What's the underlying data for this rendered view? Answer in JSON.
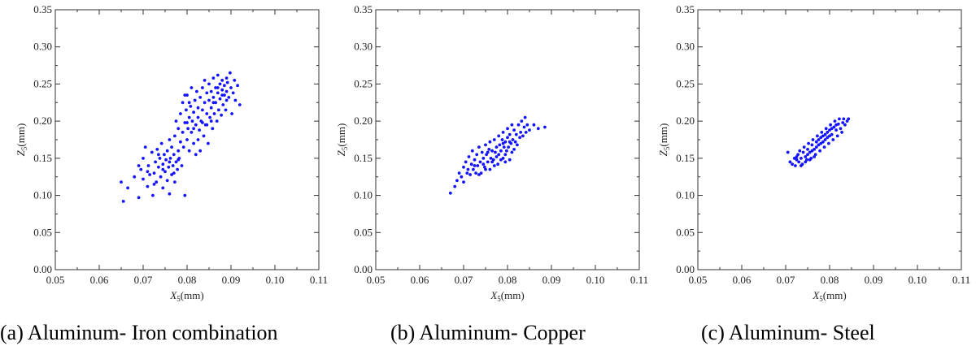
{
  "chart_data": [
    {
      "type": "scatter",
      "caption": "(a) Aluminum- Iron combination",
      "xlabel_main": "X",
      "xlabel_sub": "5",
      "xlabel_unit": "(mm)",
      "ylabel_main": "Z",
      "ylabel_sub": "5",
      "ylabel_unit": "(mm)",
      "xlim": [
        0.05,
        0.11
      ],
      "ylim": [
        0.0,
        0.35
      ],
      "xticks": [
        "0.05",
        "0.06",
        "0.07",
        "0.08",
        "0.09",
        "0.10",
        "0.11"
      ],
      "yticks": [
        "0.00",
        "0.05",
        "0.10",
        "0.15",
        "0.20",
        "0.25",
        "0.30",
        "0.35"
      ],
      "color": "#1414ff",
      "points": [
        [
          0.0655,
          0.092
        ],
        [
          0.065,
          0.118
        ],
        [
          0.0665,
          0.11
        ],
        [
          0.068,
          0.125
        ],
        [
          0.069,
          0.097
        ],
        [
          0.0695,
          0.135
        ],
        [
          0.07,
          0.122
        ],
        [
          0.07,
          0.15
        ],
        [
          0.0705,
          0.165
        ],
        [
          0.071,
          0.112
        ],
        [
          0.0712,
          0.14
        ],
        [
          0.0715,
          0.128
        ],
        [
          0.072,
          0.158
        ],
        [
          0.0722,
          0.1
        ],
        [
          0.0725,
          0.13
        ],
        [
          0.0728,
          0.145
        ],
        [
          0.073,
          0.118
        ],
        [
          0.0732,
          0.162
        ],
        [
          0.0735,
          0.138
        ],
        [
          0.0738,
          0.15
        ],
        [
          0.074,
          0.125
        ],
        [
          0.0742,
          0.17
        ],
        [
          0.0745,
          0.11
        ],
        [
          0.0745,
          0.142
        ],
        [
          0.0748,
          0.155
        ],
        [
          0.075,
          0.132
        ],
        [
          0.0752,
          0.148
        ],
        [
          0.0755,
          0.12
        ],
        [
          0.0755,
          0.16
        ],
        [
          0.0758,
          0.138
        ],
        [
          0.076,
          0.175
        ],
        [
          0.076,
          0.102
        ],
        [
          0.0762,
          0.15
        ],
        [
          0.0765,
          0.128
        ],
        [
          0.0765,
          0.165
        ],
        [
          0.0768,
          0.14
        ],
        [
          0.077,
          0.155
        ],
        [
          0.0772,
          0.118
        ],
        [
          0.0772,
          0.18
        ],
        [
          0.0775,
          0.145
        ],
        [
          0.0775,
          0.2
        ],
        [
          0.0778,
          0.135
        ],
        [
          0.078,
          0.16
        ],
        [
          0.078,
          0.19
        ],
        [
          0.0782,
          0.15
        ],
        [
          0.0785,
          0.172
        ],
        [
          0.0785,
          0.21
        ],
        [
          0.0788,
          0.14
        ],
        [
          0.079,
          0.185
        ],
        [
          0.079,
          0.225
        ],
        [
          0.0792,
          0.165
        ],
        [
          0.0795,
          0.198
        ],
        [
          0.0795,
          0.1
        ],
        [
          0.0798,
          0.215
        ],
        [
          0.08,
          0.175
        ],
        [
          0.08,
          0.235
        ],
        [
          0.0802,
          0.19
        ],
        [
          0.0805,
          0.205
        ],
        [
          0.0805,
          0.16
        ],
        [
          0.0808,
          0.22
        ],
        [
          0.081,
          0.185
        ],
        [
          0.081,
          0.245
        ],
        [
          0.0812,
          0.2
        ],
        [
          0.0815,
          0.212
        ],
        [
          0.0815,
          0.17
        ],
        [
          0.0818,
          0.228
        ],
        [
          0.082,
          0.195
        ],
        [
          0.082,
          0.155
        ],
        [
          0.0822,
          0.24
        ],
        [
          0.0825,
          0.205
        ],
        [
          0.0825,
          0.218
        ],
        [
          0.0828,
          0.188
        ],
        [
          0.083,
          0.232
        ],
        [
          0.083,
          0.16
        ],
        [
          0.0832,
          0.2
        ],
        [
          0.0835,
          0.245
        ],
        [
          0.0835,
          0.215
        ],
        [
          0.0838,
          0.18
        ],
        [
          0.084,
          0.225
        ],
        [
          0.084,
          0.255
        ],
        [
          0.0842,
          0.195
        ],
        [
          0.0845,
          0.21
        ],
        [
          0.0845,
          0.238
        ],
        [
          0.0848,
          0.17
        ],
        [
          0.085,
          0.228
        ],
        [
          0.085,
          0.25
        ],
        [
          0.0852,
          0.205
        ],
        [
          0.0855,
          0.24
        ],
        [
          0.0855,
          0.218
        ],
        [
          0.0858,
          0.19
        ],
        [
          0.086,
          0.232
        ],
        [
          0.086,
          0.258
        ],
        [
          0.0862,
          0.21
        ],
        [
          0.0865,
          0.245
        ],
        [
          0.0865,
          0.225
        ],
        [
          0.0868,
          0.2
        ],
        [
          0.087,
          0.238
        ],
        [
          0.087,
          0.262
        ],
        [
          0.0872,
          0.215
        ],
        [
          0.0875,
          0.25
        ],
        [
          0.0875,
          0.23
        ],
        [
          0.0878,
          0.208
        ],
        [
          0.088,
          0.242
        ],
        [
          0.088,
          0.255
        ],
        [
          0.0882,
          0.222
        ],
        [
          0.0885,
          0.235
        ],
        [
          0.0885,
          0.248
        ],
        [
          0.0888,
          0.215
        ],
        [
          0.089,
          0.24
        ],
        [
          0.089,
          0.228
        ],
        [
          0.0892,
          0.252
        ],
        [
          0.0895,
          0.232
        ],
        [
          0.0898,
          0.265
        ],
        [
          0.09,
          0.245
        ],
        [
          0.0902,
          0.21
        ],
        [
          0.0905,
          0.238
        ],
        [
          0.0908,
          0.255
        ],
        [
          0.091,
          0.228
        ],
        [
          0.0915,
          0.248
        ],
        [
          0.092,
          0.222
        ],
        [
          0.076,
          0.145
        ],
        [
          0.0745,
          0.135
        ],
        [
          0.0735,
          0.155
        ],
        [
          0.077,
          0.13
        ],
        [
          0.078,
          0.148
        ],
        [
          0.0725,
          0.115
        ],
        [
          0.071,
          0.132
        ],
        [
          0.069,
          0.14
        ],
        [
          0.08,
          0.198
        ],
        [
          0.0815,
          0.19
        ],
        [
          0.0825,
          0.175
        ],
        [
          0.0835,
          0.198
        ],
        [
          0.0805,
          0.225
        ],
        [
          0.0795,
          0.235
        ],
        [
          0.0845,
          0.195
        ],
        [
          0.086,
          0.225
        ],
        [
          0.087,
          0.245
        ],
        [
          0.088,
          0.235
        ],
        [
          0.089,
          0.258
        ],
        [
          0.0855,
          0.2
        ]
      ]
    },
    {
      "type": "scatter",
      "caption": "(b) Aluminum- Copper",
      "xlabel_main": "X",
      "xlabel_sub": "5",
      "xlabel_unit": "(mm)",
      "ylabel_main": "Z",
      "ylabel_sub": "5",
      "ylabel_unit": "(mm)",
      "xlim": [
        0.05,
        0.11
      ],
      "ylim": [
        0.0,
        0.35
      ],
      "xticks": [
        "0.05",
        "0.06",
        "0.07",
        "0.08",
        "0.09",
        "0.10",
        "0.11"
      ],
      "yticks": [
        "0.00",
        "0.05",
        "0.10",
        "0.15",
        "0.20",
        "0.25",
        "0.30",
        "0.35"
      ],
      "color": "#1414ff",
      "points": [
        [
          0.067,
          0.103
        ],
        [
          0.068,
          0.112
        ],
        [
          0.0685,
          0.12
        ],
        [
          0.069,
          0.13
        ],
        [
          0.0695,
          0.125
        ],
        [
          0.07,
          0.138
        ],
        [
          0.07,
          0.118
        ],
        [
          0.0705,
          0.145
        ],
        [
          0.0708,
          0.13
        ],
        [
          0.071,
          0.135
        ],
        [
          0.0712,
          0.152
        ],
        [
          0.0715,
          0.128
        ],
        [
          0.0718,
          0.142
        ],
        [
          0.072,
          0.16
        ],
        [
          0.0722,
          0.135
        ],
        [
          0.0725,
          0.148
        ],
        [
          0.0728,
          0.13
        ],
        [
          0.073,
          0.155
        ],
        [
          0.0732,
          0.14
        ],
        [
          0.0735,
          0.165
        ],
        [
          0.0738,
          0.145
        ],
        [
          0.074,
          0.13
        ],
        [
          0.0742,
          0.158
        ],
        [
          0.0745,
          0.15
        ],
        [
          0.0748,
          0.138
        ],
        [
          0.075,
          0.168
        ],
        [
          0.0752,
          0.155
        ],
        [
          0.0755,
          0.145
        ],
        [
          0.0758,
          0.162
        ],
        [
          0.076,
          0.172
        ],
        [
          0.076,
          0.135
        ],
        [
          0.0762,
          0.15
        ],
        [
          0.0765,
          0.16
        ],
        [
          0.0768,
          0.148
        ],
        [
          0.077,
          0.175
        ],
        [
          0.0772,
          0.158
        ],
        [
          0.0775,
          0.165
        ],
        [
          0.0778,
          0.142
        ],
        [
          0.078,
          0.18
        ],
        [
          0.078,
          0.155
        ],
        [
          0.0782,
          0.168
        ],
        [
          0.0785,
          0.16
        ],
        [
          0.0788,
          0.175
        ],
        [
          0.079,
          0.15
        ],
        [
          0.079,
          0.185
        ],
        [
          0.0792,
          0.165
        ],
        [
          0.0795,
          0.172
        ],
        [
          0.0798,
          0.16
        ],
        [
          0.08,
          0.19
        ],
        [
          0.08,
          0.178
        ],
        [
          0.0802,
          0.165
        ],
        [
          0.0805,
          0.182
        ],
        [
          0.0808,
          0.17
        ],
        [
          0.081,
          0.195
        ],
        [
          0.081,
          0.158
        ],
        [
          0.0812,
          0.175
        ],
        [
          0.0815,
          0.188
        ],
        [
          0.0818,
          0.172
        ],
        [
          0.082,
          0.182
        ],
        [
          0.0822,
          0.168
        ],
        [
          0.0825,
          0.195
        ],
        [
          0.0828,
          0.178
        ],
        [
          0.083,
          0.185
        ],
        [
          0.0832,
          0.2
        ],
        [
          0.0835,
          0.18
        ],
        [
          0.0838,
          0.192
        ],
        [
          0.084,
          0.205
        ],
        [
          0.0842,
          0.185
        ],
        [
          0.0845,
          0.195
        ],
        [
          0.085,
          0.188
        ],
        [
          0.086,
          0.195
        ],
        [
          0.087,
          0.19
        ],
        [
          0.0885,
          0.192
        ],
        [
          0.0725,
          0.14
        ],
        [
          0.0735,
          0.128
        ],
        [
          0.0745,
          0.142
        ],
        [
          0.0755,
          0.158
        ],
        [
          0.0765,
          0.145
        ],
        [
          0.0775,
          0.152
        ],
        [
          0.0785,
          0.148
        ],
        [
          0.0795,
          0.155
        ],
        [
          0.0805,
          0.148
        ],
        [
          0.0815,
          0.162
        ],
        [
          0.077,
          0.14
        ],
        [
          0.075,
          0.135
        ],
        [
          0.0795,
          0.145
        ],
        [
          0.0805,
          0.172
        ],
        [
          0.079,
          0.17
        ]
      ]
    },
    {
      "type": "scatter",
      "caption": "(c) Aluminum- Steel",
      "xlabel_main": "X",
      "xlabel_sub": "5",
      "xlabel_unit": "(mm)",
      "ylabel_main": "Z",
      "ylabel_sub": "5",
      "ylabel_unit": "(mm)",
      "xlim": [
        0.05,
        0.11
      ],
      "ylim": [
        0.0,
        0.35
      ],
      "xticks": [
        "0.05",
        "0.06",
        "0.07",
        "0.08",
        "0.09",
        "0.10",
        "0.11"
      ],
      "yticks": [
        "0.00",
        "0.05",
        "0.10",
        "0.15",
        "0.20",
        "0.25",
        "0.30",
        "0.35"
      ],
      "color": "#1414ff",
      "points": [
        [
          0.0705,
          0.158
        ],
        [
          0.071,
          0.145
        ],
        [
          0.0715,
          0.142
        ],
        [
          0.072,
          0.15
        ],
        [
          0.0722,
          0.14
        ],
        [
          0.0725,
          0.148
        ],
        [
          0.0728,
          0.155
        ],
        [
          0.073,
          0.145
        ],
        [
          0.0732,
          0.16
        ],
        [
          0.0735,
          0.15
        ],
        [
          0.0738,
          0.142
        ],
        [
          0.074,
          0.158
        ],
        [
          0.0742,
          0.165
        ],
        [
          0.0745,
          0.152
        ],
        [
          0.0748,
          0.148
        ],
        [
          0.075,
          0.162
        ],
        [
          0.0752,
          0.17
        ],
        [
          0.0755,
          0.158
        ],
        [
          0.0758,
          0.15
        ],
        [
          0.076,
          0.168
        ],
        [
          0.0762,
          0.175
        ],
        [
          0.0765,
          0.162
        ],
        [
          0.0768,
          0.155
        ],
        [
          0.077,
          0.172
        ],
        [
          0.0772,
          0.18
        ],
        [
          0.0775,
          0.168
        ],
        [
          0.0778,
          0.16
        ],
        [
          0.078,
          0.178
        ],
        [
          0.0782,
          0.185
        ],
        [
          0.0785,
          0.172
        ],
        [
          0.0788,
          0.165
        ],
        [
          0.079,
          0.182
        ],
        [
          0.0792,
          0.19
        ],
        [
          0.0795,
          0.178
        ],
        [
          0.0798,
          0.17
        ],
        [
          0.08,
          0.188
        ],
        [
          0.0802,
          0.195
        ],
        [
          0.0805,
          0.182
        ],
        [
          0.0808,
          0.175
        ],
        [
          0.081,
          0.192
        ],
        [
          0.0812,
          0.2
        ],
        [
          0.0815,
          0.188
        ],
        [
          0.0818,
          0.18
        ],
        [
          0.082,
          0.196
        ],
        [
          0.0822,
          0.203
        ],
        [
          0.0825,
          0.19
        ],
        [
          0.0828,
          0.185
        ],
        [
          0.083,
          0.198
        ],
        [
          0.0832,
          0.203
        ],
        [
          0.0835,
          0.195
        ],
        [
          0.084,
          0.2
        ],
        [
          0.0843,
          0.203
        ],
        [
          0.075,
          0.155
        ],
        [
          0.076,
          0.16
        ],
        [
          0.077,
          0.165
        ],
        [
          0.078,
          0.17
        ],
        [
          0.079,
          0.175
        ],
        [
          0.08,
          0.18
        ],
        [
          0.0745,
          0.145
        ],
        [
          0.0765,
          0.152
        ],
        [
          0.0775,
          0.175
        ],
        [
          0.0785,
          0.18
        ],
        [
          0.0795,
          0.185
        ],
        [
          0.0805,
          0.19
        ],
        [
          0.0815,
          0.195
        ],
        [
          0.0735,
          0.14
        ],
        [
          0.0755,
          0.148
        ],
        [
          0.0725,
          0.152
        ]
      ]
    }
  ]
}
